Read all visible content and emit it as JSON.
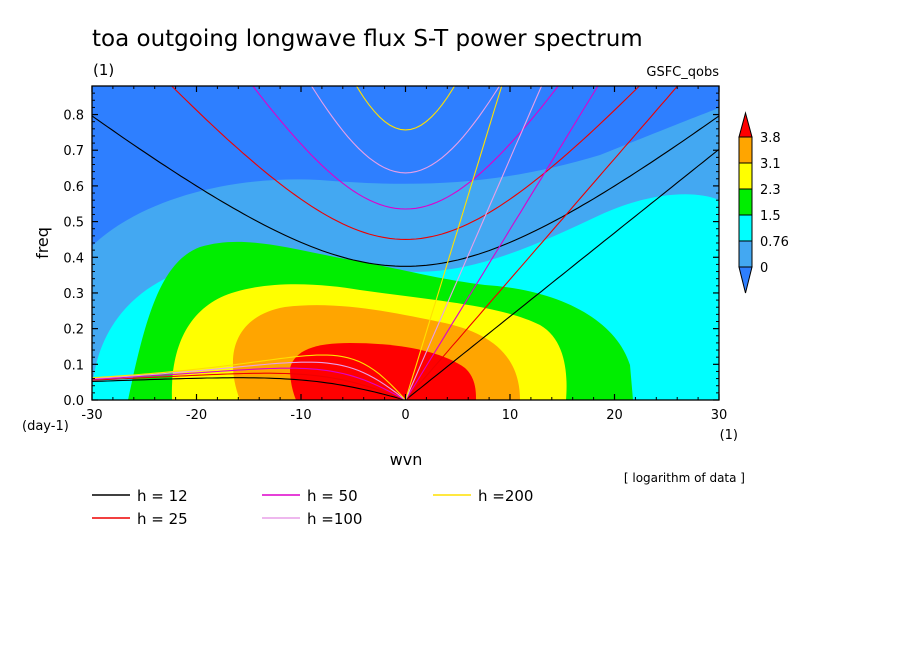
{
  "chart_data": {
    "type": "heatmap",
    "title": "toa outgoing longwave flux S-T power spectrum",
    "subtitle_left": "(1)",
    "subtitle_right": "GSFC_qobs",
    "xlabel": "wvn",
    "ylabel": "freq",
    "x_unit_label": "(1)",
    "y_unit_label": "(day-1)",
    "xlim": [
      -30,
      30
    ],
    "ylim": [
      0,
      0.88
    ],
    "x_ticks": [
      {
        "value": -30,
        "label": "-30"
      },
      {
        "value": -20,
        "label": "-20"
      },
      {
        "value": -10,
        "label": "-10"
      },
      {
        "value": 0,
        "label": "0"
      },
      {
        "value": 10,
        "label": "10"
      },
      {
        "value": 20,
        "label": "20"
      },
      {
        "value": 30,
        "label": "30"
      }
    ],
    "y_ticks": [
      {
        "value": 0.0,
        "label": "0.0"
      },
      {
        "value": 0.1,
        "label": "0.1"
      },
      {
        "value": 0.2,
        "label": "0.2"
      },
      {
        "value": 0.3,
        "label": "0.3"
      },
      {
        "value": 0.4,
        "label": "0.4"
      },
      {
        "value": 0.5,
        "label": "0.5"
      },
      {
        "value": 0.6,
        "label": "0.6"
      },
      {
        "value": 0.7,
        "label": "0.7"
      },
      {
        "value": 0.8,
        "label": "0.8"
      }
    ],
    "note": "[ logarithm of data ]",
    "colorbar": {
      "levels": [
        "0",
        "0.76",
        "1.5",
        "2.3",
        "3.1",
        "3.8"
      ],
      "colors": [
        "#2e7fff",
        "#43a8f2",
        "#00ffff",
        "#00ee00",
        "#ffff00",
        "#ffa500",
        "#ff0000"
      ]
    },
    "contour_levels": [
      0.0,
      0.76,
      1.5,
      2.3,
      3.1,
      3.8
    ],
    "dispersion_curves": [
      {
        "label": "h = 12",
        "h": 12,
        "color": "#000000"
      },
      {
        "label": "h = 25",
        "h": 25,
        "color": "#ee0000"
      },
      {
        "label": "h = 50",
        "h": 50,
        "color": "#dd00cc"
      },
      {
        "label": "h =100",
        "h": 100,
        "color": "#e8a0e8"
      },
      {
        "label": "h =200",
        "h": 200,
        "color": "#ffe000"
      }
    ]
  }
}
